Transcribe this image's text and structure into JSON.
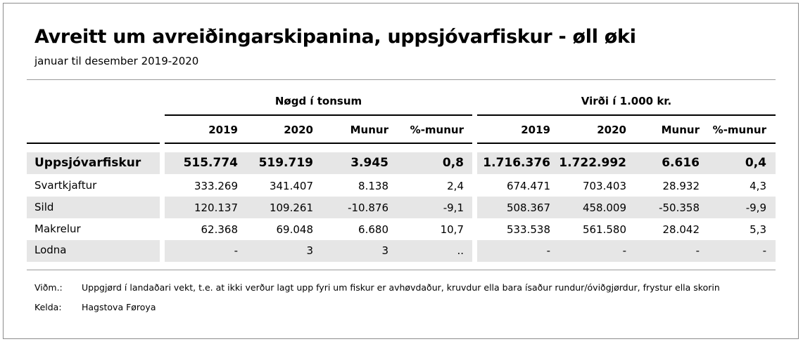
{
  "title": "Avreitt um avreiðingarskipanina, uppsjóvarfiskur - øll øki",
  "subtitle": "januar til desember 2019-2020",
  "groups": {
    "quantity": "Nøgd í tonsum",
    "value": "Virði í 1.000 kr."
  },
  "columns": [
    "2019",
    "2020",
    "Munur",
    "%-munur",
    "2019",
    "2020",
    "Munur",
    "%-munur"
  ],
  "rows": [
    {
      "label": "Uppsjóvarfiskur",
      "values": [
        "515.774",
        "519.719",
        "3.945",
        "0,8",
        "1.716.376",
        "1.722.992",
        "6.616",
        "0,4"
      ]
    },
    {
      "label": "Svartkjaftur",
      "values": [
        "333.269",
        "341.407",
        "8.138",
        "2,4",
        "674.471",
        "703.403",
        "28.932",
        "4,3"
      ]
    },
    {
      "label": "Sild",
      "values": [
        "120.137",
        "109.261",
        "-10.876",
        "-9,1",
        "508.367",
        "458.009",
        "-50.358",
        "-9,9"
      ]
    },
    {
      "label": "Makrelur",
      "values": [
        "62.368",
        "69.048",
        "6.680",
        "10,7",
        "533.538",
        "561.580",
        "28.042",
        "5,3"
      ]
    },
    {
      "label": "Lodna",
      "values": [
        "-",
        "3",
        "3",
        "..",
        "-",
        "-",
        "-",
        "-"
      ]
    }
  ],
  "notes": {
    "note_label": "Viðm.:",
    "note_text": "Uppgjørd í landaðari vekt, t.e. at ikki verður lagt upp fyri um fiskur er avhøvdaður, kruvdur ella bara ísaður rundur/óviðgjørdur, frystur ella skorin",
    "source_label": "Kelda:",
    "source_text": "Hagstova Føroya"
  }
}
